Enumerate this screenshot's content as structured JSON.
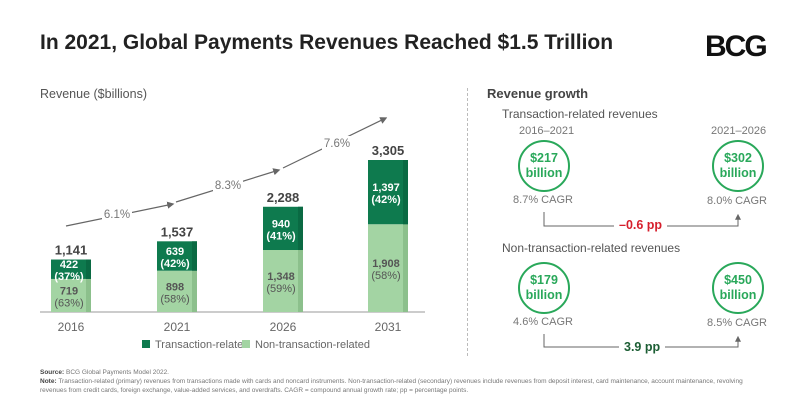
{
  "title": "In 2021, Global Payments Revenues Reached $1.5 Trillion",
  "logo": "BCG",
  "colors": {
    "transaction": "#0e7a4e",
    "non_transaction": "#a3d4a3",
    "accent": "#29a85a",
    "negative": "#d61f2c",
    "positive": "#1c5e34"
  },
  "chart_data": {
    "type": "bar",
    "stacked": true,
    "ylabel": "Revenue ($billions)",
    "categories": [
      "2016",
      "2021",
      "2026",
      "2031"
    ],
    "totals": [
      "1,141",
      "1,537",
      "2,288",
      "3,305"
    ],
    "series": [
      {
        "name": "Non-transaction-related",
        "values": [
          719,
          898,
          1348,
          1908
        ],
        "labels": [
          "719",
          "898",
          "1,348",
          "1,908"
        ],
        "shares": [
          "(63%)",
          "(58%)",
          "(59%)",
          "(58%)"
        ]
      },
      {
        "name": "Transaction-related",
        "values": [
          422,
          639,
          940,
          1397
        ],
        "labels": [
          "422",
          "639",
          "940",
          "1,397"
        ],
        "shares": [
          "(37%)",
          "(42%)",
          "(41%)",
          "(42%)"
        ]
      }
    ],
    "growth_labels": [
      "6.1%",
      "8.3%",
      "7.6%"
    ],
    "legend": [
      "Transaction-related",
      "Non-transaction-related"
    ],
    "legend_position": "bottom"
  },
  "growth": {
    "heading": "Revenue growth",
    "periods": [
      "2016–2021",
      "2021–2026"
    ],
    "transaction": {
      "label": "Transaction-related revenues",
      "left": {
        "amount": "$217",
        "unit": "billion",
        "cagr": "8.7% CAGR"
      },
      "right": {
        "amount": "$302",
        "unit": "billion",
        "cagr": "8.0% CAGR"
      },
      "diff": "–0.6 pp"
    },
    "non_transaction": {
      "label": "Non-transaction-related revenues",
      "left": {
        "amount": "$179",
        "unit": "billion",
        "cagr": "4.6% CAGR"
      },
      "right": {
        "amount": "$450",
        "unit": "billion",
        "cagr": "8.5% CAGR"
      },
      "diff": "3.9 pp"
    }
  },
  "source": {
    "label": "Source:",
    "text": "BCG Global Payments Model 2022."
  },
  "note": {
    "label": "Note:",
    "text": "Transaction-related (primary) revenues from transactions made with cards and noncard instruments. Non-transaction-related (secondary) revenues include revenues from deposit interest, card maintenance, account maintenance, revolving revenues from credit cards, foreign exchange, value-added services, and overdrafts. CAGR = compound annual growth rate; pp = percentage points."
  }
}
